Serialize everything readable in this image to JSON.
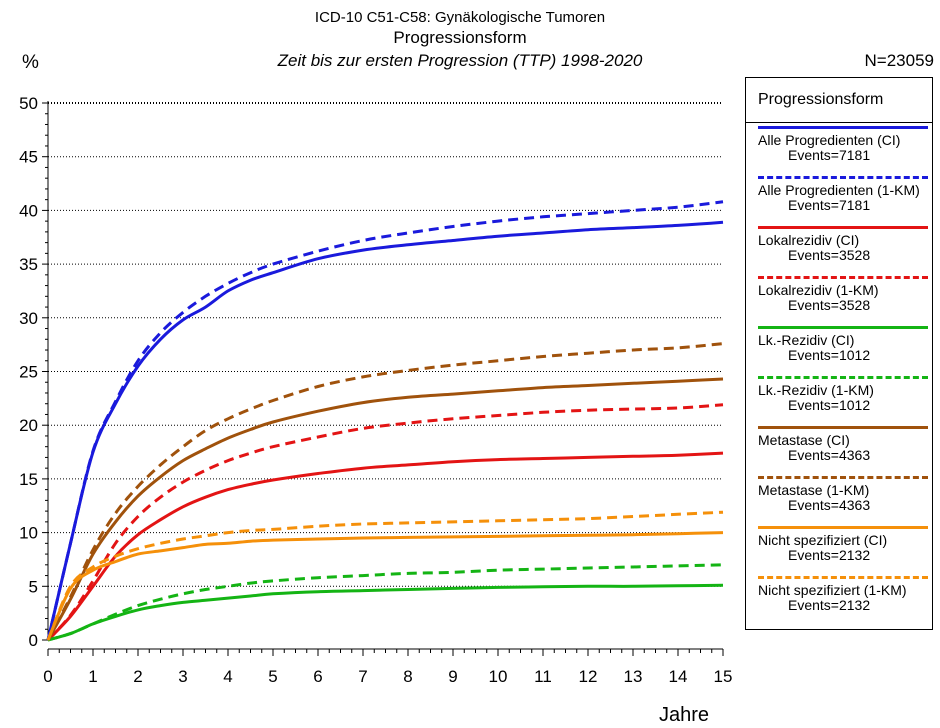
{
  "header": {
    "line1": "ICD-10 C51-C58: Gynäkologische Tumoren",
    "line2": "Progressionsform",
    "line3": "Zeit bis zur ersten Progression (TTP) 1998-2020",
    "n": "N=23059"
  },
  "chart_data": {
    "type": "line",
    "title": "Progressionsform",
    "ylabel": "%",
    "xlabel": "Jahre",
    "xlim": [
      0,
      15
    ],
    "ylim": [
      0,
      50
    ],
    "x_ticks": [
      "0",
      "1",
      "2",
      "3",
      "4",
      "5",
      "6",
      "7",
      "8",
      "9",
      "10",
      "11",
      "12",
      "13",
      "14",
      "15"
    ],
    "y_ticks": [
      "0",
      "5",
      "10",
      "15",
      "20",
      "25",
      "30",
      "35",
      "40",
      "45",
      "50"
    ],
    "grid": "horizontal dotted",
    "legend_position": "right",
    "legend_title": "Progressionsform",
    "x": [
      0,
      0.5,
      1,
      1.5,
      2,
      2.5,
      3,
      3.5,
      4,
      4.5,
      5,
      6,
      7,
      8,
      9,
      10,
      11,
      12,
      13,
      14,
      15
    ],
    "series": [
      {
        "name": "Alle Progredienten (CI)",
        "events": "Events=7181",
        "color": "#1a1adc",
        "dash": false,
        "values": [
          0,
          9,
          17.5,
          22,
          25.5,
          28,
          29.8,
          31,
          32.5,
          33.5,
          34.2,
          35.5,
          36.3,
          36.8,
          37.2,
          37.6,
          37.9,
          38.2,
          38.4,
          38.6,
          38.9
        ]
      },
      {
        "name": "Alle Progredienten (1-KM)",
        "events": "Events=7181",
        "color": "#1a1adc",
        "dash": true,
        "values": [
          0,
          9,
          17.6,
          22.2,
          26,
          28.6,
          30.5,
          32,
          33.2,
          34.2,
          35,
          36.2,
          37.2,
          37.9,
          38.5,
          39,
          39.4,
          39.7,
          40,
          40.3,
          40.8
        ]
      },
      {
        "name": "Lokalrezidiv (CI)",
        "events": "Events=3528",
        "color": "#e31414",
        "dash": false,
        "values": [
          0,
          2.2,
          5,
          7.8,
          9.8,
          11.2,
          12.4,
          13.3,
          14,
          14.5,
          14.9,
          15.5,
          16,
          16.3,
          16.6,
          16.8,
          16.9,
          17,
          17.1,
          17.2,
          17.4
        ]
      },
      {
        "name": "Lokalrezidiv (1-KM)",
        "events": "Events=3528",
        "color": "#e31414",
        "dash": true,
        "values": [
          0,
          2.3,
          5.5,
          9,
          11.5,
          13.3,
          14.7,
          15.8,
          16.7,
          17.4,
          18,
          18.9,
          19.7,
          20.2,
          20.6,
          20.9,
          21.2,
          21.4,
          21.5,
          21.6,
          21.9
        ]
      },
      {
        "name": "Lk.-Rezidiv (CI)",
        "events": "Events=1012",
        "color": "#14b414",
        "dash": false,
        "values": [
          0,
          0.6,
          1.5,
          2.2,
          2.8,
          3.2,
          3.5,
          3.7,
          3.9,
          4.1,
          4.3,
          4.5,
          4.6,
          4.7,
          4.8,
          4.9,
          4.95,
          5,
          5,
          5.05,
          5.1
        ]
      },
      {
        "name": "Lk.-Rezidiv (1-KM)",
        "events": "Events=1012",
        "color": "#14b414",
        "dash": true,
        "values": [
          0,
          0.6,
          1.5,
          2.4,
          3.2,
          3.8,
          4.3,
          4.7,
          5,
          5.3,
          5.5,
          5.8,
          6.0,
          6.2,
          6.3,
          6.5,
          6.6,
          6.7,
          6.8,
          6.9,
          7.0
        ]
      },
      {
        "name": "Metastase (CI)",
        "events": "Events=4363",
        "color": "#a0520c",
        "dash": false,
        "values": [
          0,
          3.8,
          8,
          11,
          13.4,
          15.2,
          16.7,
          17.8,
          18.8,
          19.6,
          20.3,
          21.3,
          22.1,
          22.6,
          22.9,
          23.2,
          23.5,
          23.7,
          23.9,
          24.1,
          24.3
        ]
      },
      {
        "name": "Metastase (1-KM)",
        "events": "Events=4363",
        "color": "#a0520c",
        "dash": true,
        "values": [
          0,
          4,
          8.4,
          11.8,
          14.3,
          16.3,
          18,
          19.5,
          20.6,
          21.5,
          22.3,
          23.6,
          24.5,
          25.1,
          25.6,
          26,
          26.4,
          26.7,
          27,
          27.2,
          27.6
        ]
      },
      {
        "name": "Nicht spezifiziert (CI)",
        "events": "Events=2132",
        "color": "#f5900a",
        "dash": false,
        "values": [
          0,
          4.8,
          6.5,
          7.3,
          8,
          8.3,
          8.6,
          8.9,
          9.0,
          9.2,
          9.3,
          9.4,
          9.5,
          9.55,
          9.6,
          9.65,
          9.7,
          9.75,
          9.8,
          9.9,
          10.0
        ]
      },
      {
        "name": "Nicht spezifiziert (1-KM)",
        "events": "Events=2132",
        "color": "#f5900a",
        "dash": true,
        "values": [
          0,
          5,
          6.8,
          7.8,
          8.5,
          9,
          9.4,
          9.7,
          10,
          10.2,
          10.3,
          10.6,
          10.8,
          10.9,
          11,
          11.1,
          11.2,
          11.3,
          11.5,
          11.7,
          11.9
        ]
      }
    ]
  }
}
